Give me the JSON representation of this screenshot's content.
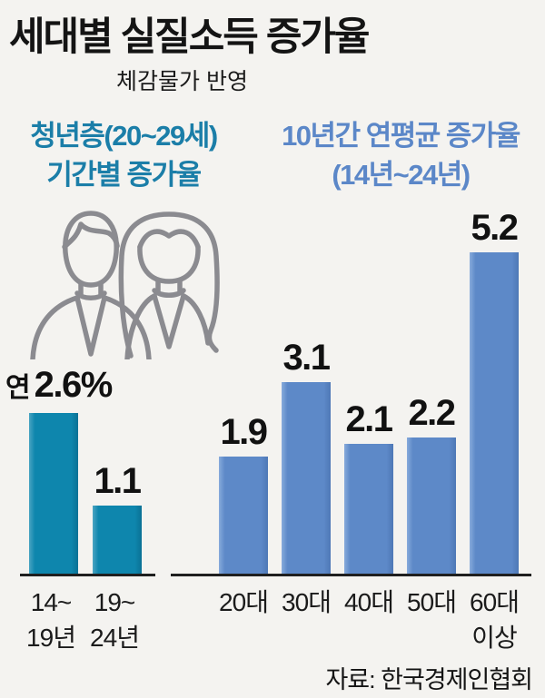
{
  "header": {
    "title": "세대별 실질소득 증가율",
    "subtitle": "체감물가 반영"
  },
  "sections": {
    "left": {
      "heading_line1": "청년층(20~29세)",
      "heading_line2": "기간별 증가율",
      "value_prefix": "연",
      "value_suffix": "%"
    },
    "right": {
      "heading_line1": "10년간 연평균 증가율",
      "heading_line2": "(14년~24년)"
    }
  },
  "source": "자료: 한국경제인협회",
  "icons": {
    "people": "man-and-woman-outline-icon"
  },
  "colors": {
    "background": "#f4f3f0",
    "teal_bar": "#0e86ad",
    "teal_heading": "#1b7ea8",
    "blue_bar": "#5d89c8",
    "blue_heading": "#5b87c8",
    "axis": "#1f1f1f",
    "text": "#1a1a1a",
    "icon_stroke": "#8b8b90"
  },
  "chart_data": [
    {
      "type": "bar",
      "title": "청년층(20~29세) 기간별 증가율",
      "unit": "%",
      "categories": [
        "14~\n19년",
        "19~\n24년"
      ],
      "values": [
        2.6,
        1.1
      ],
      "value_labels": [
        "연 2.6%",
        "1.1"
      ],
      "bar_color": "#0e86ad",
      "ylim": [
        0,
        5.5
      ],
      "grid": false,
      "legend": "none"
    },
    {
      "type": "bar",
      "title": "10년간 연평균 증가율 (14년~24년)",
      "unit": "%",
      "categories": [
        "20대",
        "30대",
        "40대",
        "50대",
        "60대\n이상"
      ],
      "values": [
        1.9,
        3.1,
        2.1,
        2.2,
        5.2
      ],
      "value_labels": [
        "1.9",
        "3.1",
        "2.1",
        "2.2",
        "5.2"
      ],
      "bar_color": "#5d89c8",
      "ylim": [
        0,
        5.5
      ],
      "grid": false,
      "legend": "none"
    }
  ]
}
